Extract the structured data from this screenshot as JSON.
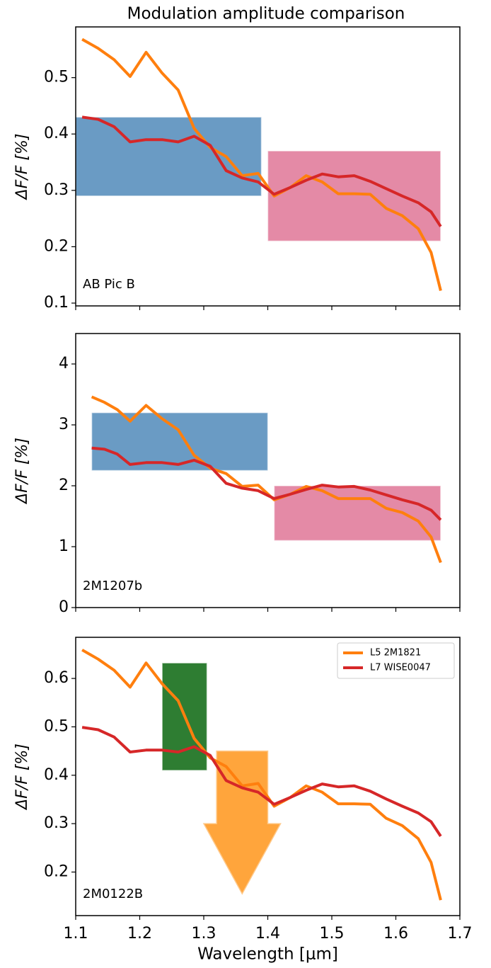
{
  "title": "Modulation amplitude comparison",
  "chart_data": [
    {
      "type": "line",
      "annotation": "AB Pic B",
      "ylabel": "ΔF/F [%]",
      "xlim": [
        1.1,
        1.7
      ],
      "xticks": [
        1.1,
        1.2,
        1.3,
        1.4,
        1.5,
        1.6,
        1.7
      ],
      "xtick_labels": false,
      "ylim": [
        0.095,
        0.59
      ],
      "yticks": [
        0.1,
        0.2,
        0.3,
        0.4,
        0.5
      ],
      "x": [
        1.11,
        1.135,
        1.16,
        1.185,
        1.21,
        1.235,
        1.26,
        1.285,
        1.31,
        1.335,
        1.36,
        1.385,
        1.41,
        1.435,
        1.46,
        1.485,
        1.51,
        1.535,
        1.56,
        1.585,
        1.61,
        1.635,
        1.655,
        1.67
      ],
      "regions": [
        {
          "x": [
            1.1,
            1.39
          ],
          "y": [
            0.29,
            0.43
          ],
          "color": "#6a9bc4"
        },
        {
          "x": [
            1.4,
            1.67
          ],
          "y": [
            0.21,
            0.37
          ],
          "color": "#e48aa6"
        }
      ],
      "series": [
        {
          "color": "#ff7f0e",
          "values": [
            0.568,
            0.552,
            0.532,
            0.502,
            0.545,
            0.508,
            0.478,
            0.41,
            0.376,
            0.36,
            0.326,
            0.33,
            0.29,
            0.305,
            0.326,
            0.315,
            0.294,
            0.294,
            0.293,
            0.268,
            0.255,
            0.232,
            0.19,
            0.122
          ]
        },
        {
          "color": "#d62728",
          "values": [
            0.43,
            0.426,
            0.413,
            0.386,
            0.39,
            0.39,
            0.386,
            0.396,
            0.38,
            0.335,
            0.322,
            0.315,
            0.293,
            0.305,
            0.318,
            0.329,
            0.324,
            0.326,
            0.316,
            0.303,
            0.29,
            0.278,
            0.262,
            0.236
          ]
        }
      ]
    },
    {
      "type": "line",
      "annotation": "2M1207b",
      "ylabel": "ΔF/F [%]",
      "xlim": [
        1.1,
        1.7
      ],
      "xticks": [
        1.1,
        1.2,
        1.3,
        1.4,
        1.5,
        1.6,
        1.7
      ],
      "xtick_labels": false,
      "ylim": [
        0,
        4.5
      ],
      "yticks": [
        0,
        1,
        2,
        3,
        4
      ],
      "x": [
        1.125,
        1.145,
        1.165,
        1.185,
        1.21,
        1.235,
        1.26,
        1.285,
        1.31,
        1.335,
        1.36,
        1.385,
        1.41,
        1.435,
        1.46,
        1.485,
        1.51,
        1.535,
        1.56,
        1.585,
        1.61,
        1.635,
        1.655,
        1.67
      ],
      "regions": [
        {
          "x": [
            1.125,
            1.4
          ],
          "y": [
            2.25,
            3.2
          ],
          "color": "#6a9bc4"
        },
        {
          "x": [
            1.41,
            1.67
          ],
          "y": [
            1.1,
            2.0
          ],
          "color": "#e48aa6"
        }
      ],
      "series": [
        {
          "color": "#ff7f0e",
          "values": [
            3.46,
            3.37,
            3.25,
            3.06,
            3.32,
            3.1,
            2.92,
            2.5,
            2.29,
            2.2,
            1.99,
            2.01,
            1.77,
            1.86,
            1.99,
            1.92,
            1.79,
            1.79,
            1.79,
            1.63,
            1.56,
            1.42,
            1.16,
            0.74
          ]
        },
        {
          "color": "#d62728",
          "values": [
            2.62,
            2.6,
            2.52,
            2.35,
            2.38,
            2.38,
            2.35,
            2.42,
            2.32,
            2.04,
            1.96,
            1.92,
            1.79,
            1.86,
            1.94,
            2.01,
            1.98,
            1.99,
            1.93,
            1.85,
            1.77,
            1.7,
            1.6,
            1.44
          ]
        }
      ]
    },
    {
      "type": "line",
      "annotation": "2M0122B",
      "ylabel": "ΔF/F [%]",
      "xlabel": "Wavelength [μm]",
      "xlim": [
        1.1,
        1.7
      ],
      "xticks": [
        1.1,
        1.2,
        1.3,
        1.4,
        1.5,
        1.6,
        1.7
      ],
      "xtick_labels": true,
      "ylim": [
        0.11,
        0.685
      ],
      "yticks": [
        0.2,
        0.3,
        0.4,
        0.5,
        0.6
      ],
      "legend": "upper right",
      "x": [
        1.11,
        1.135,
        1.16,
        1.185,
        1.21,
        1.235,
        1.26,
        1.285,
        1.31,
        1.335,
        1.36,
        1.385,
        1.41,
        1.435,
        1.46,
        1.485,
        1.51,
        1.535,
        1.56,
        1.585,
        1.61,
        1.635,
        1.655,
        1.67
      ],
      "regions": [
        {
          "x": [
            1.235,
            1.305
          ],
          "y": [
            0.41,
            0.632
          ],
          "color": "#2e7d32"
        }
      ],
      "upper_limits": [
        {
          "x": [
            1.32,
            1.4
          ],
          "head_x": [
            1.3,
            1.42
          ],
          "top": 0.45,
          "head_base": 0.3,
          "tip": 0.155,
          "color": "#ffa53c"
        }
      ],
      "series": [
        {
          "name": "L5 2M1821",
          "color": "#ff7f0e",
          "values": [
            0.659,
            0.64,
            0.617,
            0.582,
            0.632,
            0.589,
            0.554,
            0.476,
            0.436,
            0.418,
            0.378,
            0.383,
            0.336,
            0.354,
            0.378,
            0.365,
            0.341,
            0.341,
            0.34,
            0.311,
            0.296,
            0.269,
            0.22,
            0.142
          ]
        },
        {
          "name": "L7 WISE0047",
          "color": "#d62728",
          "values": [
            0.499,
            0.494,
            0.479,
            0.448,
            0.452,
            0.452,
            0.448,
            0.459,
            0.441,
            0.389,
            0.374,
            0.365,
            0.34,
            0.354,
            0.369,
            0.382,
            0.376,
            0.378,
            0.367,
            0.351,
            0.336,
            0.322,
            0.304,
            0.274
          ]
        }
      ]
    }
  ]
}
